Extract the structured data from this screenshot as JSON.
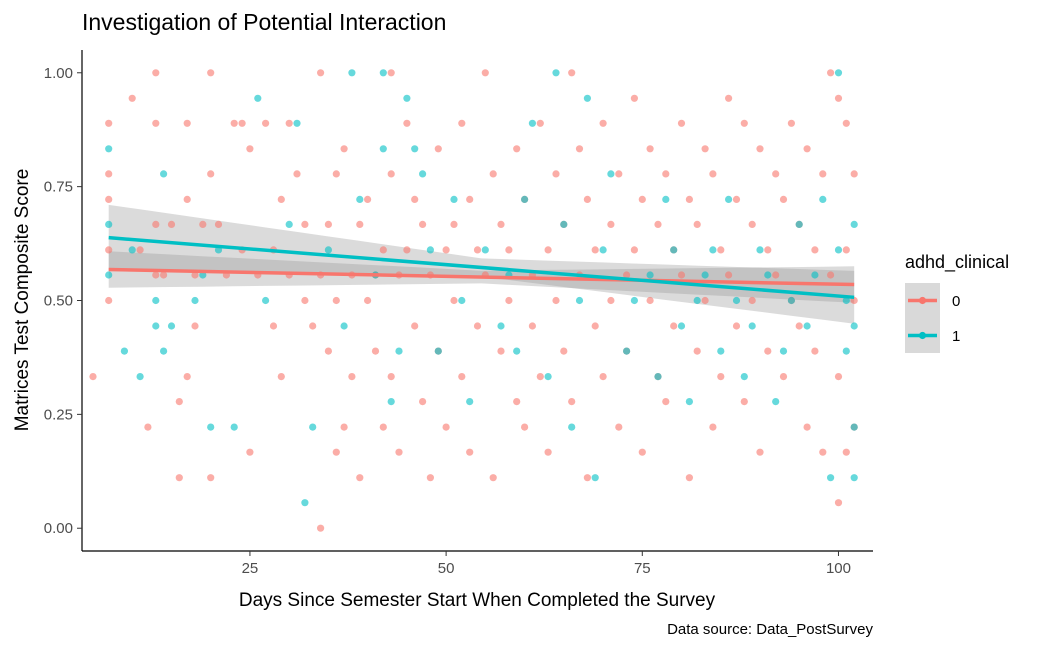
{
  "chart_data": {
    "type": "scatter",
    "title": "Investigation of Potential Interaction",
    "xlabel": "Days Since Semester Start When Completed the Survey",
    "ylabel": "Matrices Test Composite Score",
    "caption": "Data source: Data_PostSurvey",
    "xlim": [
      3.6,
      104.4
    ],
    "ylim": [
      -0.05,
      1.05
    ],
    "x_ticks": [
      25,
      50,
      75,
      100
    ],
    "y_ticks": [
      0.0,
      0.25,
      0.5,
      0.75,
      1.0
    ],
    "x_tick_labels": [
      "25",
      "50",
      "75",
      "100"
    ],
    "y_tick_labels": [
      "0.00",
      "0.25",
      "0.50",
      "0.75",
      "1.00"
    ],
    "grid": false,
    "legend": {
      "title": "adhd_clinical",
      "position": "right",
      "entries": [
        {
          "label": "0",
          "color": "#F8766D"
        },
        {
          "label": "1",
          "color": "#00BFC4"
        }
      ]
    },
    "series": [
      {
        "name": "0",
        "color": "#F8766D",
        "points": [
          [
            5,
            0.333
          ],
          [
            7,
            0.889
          ],
          [
            7,
            0.778
          ],
          [
            7,
            0.722
          ],
          [
            7,
            0.611
          ],
          [
            7,
            0.5
          ],
          [
            10,
            0.944
          ],
          [
            11,
            0.611
          ],
          [
            12,
            0.222
          ],
          [
            13,
            0.889
          ],
          [
            13,
            0.667
          ],
          [
            13,
            0.556
          ],
          [
            13,
            1.0
          ],
          [
            14,
            0.556
          ],
          [
            15,
            0.667
          ],
          [
            16,
            0.278
          ],
          [
            16,
            0.111
          ],
          [
            17,
            0.889
          ],
          [
            17,
            0.722
          ],
          [
            17,
            0.333
          ],
          [
            18,
            0.556
          ],
          [
            18,
            0.444
          ],
          [
            19,
            0.667
          ],
          [
            20,
            1.0
          ],
          [
            20,
            0.778
          ],
          [
            20,
            0.111
          ],
          [
            21,
            0.667
          ],
          [
            22,
            0.556
          ],
          [
            23,
            0.889
          ],
          [
            24,
            0.889
          ],
          [
            24,
            0.611
          ],
          [
            25,
            0.833
          ],
          [
            25,
            0.167
          ],
          [
            26,
            0.556
          ],
          [
            27,
            0.889
          ],
          [
            28,
            0.611
          ],
          [
            28,
            0.444
          ],
          [
            29,
            0.722
          ],
          [
            29,
            0.333
          ],
          [
            30,
            0.889
          ],
          [
            30,
            0.556
          ],
          [
            31,
            0.778
          ],
          [
            32,
            0.667
          ],
          [
            32,
            0.5
          ],
          [
            33,
            0.444
          ],
          [
            34,
            1.0
          ],
          [
            34,
            0.556
          ],
          [
            34,
            0.0
          ],
          [
            35,
            0.667
          ],
          [
            35,
            0.389
          ],
          [
            36,
            0.778
          ],
          [
            36,
            0.5
          ],
          [
            36,
            0.167
          ],
          [
            37,
            0.833
          ],
          [
            37,
            0.222
          ],
          [
            38,
            0.556
          ],
          [
            38,
            0.333
          ],
          [
            39,
            0.667
          ],
          [
            39,
            0.111
          ],
          [
            40,
            0.722
          ],
          [
            40,
            0.5
          ],
          [
            41,
            0.556
          ],
          [
            41,
            0.389
          ],
          [
            42,
            0.611
          ],
          [
            42,
            0.222
          ],
          [
            43,
            1.0
          ],
          [
            43,
            0.778
          ],
          [
            43,
            0.333
          ],
          [
            44,
            0.556
          ],
          [
            44,
            0.167
          ],
          [
            45,
            0.889
          ],
          [
            45,
            0.611
          ],
          [
            46,
            0.722
          ],
          [
            46,
            0.444
          ],
          [
            47,
            0.667
          ],
          [
            47,
            0.278
          ],
          [
            48,
            0.556
          ],
          [
            48,
            0.111
          ],
          [
            49,
            0.833
          ],
          [
            49,
            0.389
          ],
          [
            50,
            0.611
          ],
          [
            50,
            0.222
          ],
          [
            51,
            0.5
          ],
          [
            51,
            0.667
          ],
          [
            52,
            0.889
          ],
          [
            52,
            0.333
          ],
          [
            53,
            0.722
          ],
          [
            53,
            0.167
          ],
          [
            54,
            0.611
          ],
          [
            54,
            0.444
          ],
          [
            55,
            1.0
          ],
          [
            55,
            0.556
          ],
          [
            56,
            0.778
          ],
          [
            56,
            0.111
          ],
          [
            57,
            0.667
          ],
          [
            57,
            0.389
          ],
          [
            58,
            0.611
          ],
          [
            58,
            0.5
          ],
          [
            59,
            0.833
          ],
          [
            59,
            0.278
          ],
          [
            60,
            0.722
          ],
          [
            60,
            0.222
          ],
          [
            61,
            0.556
          ],
          [
            61,
            0.444
          ],
          [
            62,
            0.889
          ],
          [
            62,
            0.333
          ],
          [
            63,
            0.611
          ],
          [
            63,
            0.167
          ],
          [
            64,
            0.778
          ],
          [
            64,
            0.5
          ],
          [
            65,
            0.667
          ],
          [
            65,
            0.389
          ],
          [
            66,
            1.0
          ],
          [
            66,
            0.278
          ],
          [
            67,
            0.833
          ],
          [
            67,
            0.556
          ],
          [
            68,
            0.722
          ],
          [
            68,
            0.111
          ],
          [
            69,
            0.611
          ],
          [
            69,
            0.444
          ],
          [
            70,
            0.889
          ],
          [
            70,
            0.333
          ],
          [
            71,
            0.667
          ],
          [
            71,
            0.5
          ],
          [
            72,
            0.778
          ],
          [
            72,
            0.222
          ],
          [
            73,
            0.556
          ],
          [
            73,
            0.389
          ],
          [
            74,
            0.944
          ],
          [
            74,
            0.611
          ],
          [
            75,
            0.722
          ],
          [
            75,
            0.167
          ],
          [
            76,
            0.833
          ],
          [
            76,
            0.5
          ],
          [
            77,
            0.667
          ],
          [
            77,
            0.333
          ],
          [
            78,
            0.778
          ],
          [
            78,
            0.278
          ],
          [
            79,
            0.611
          ],
          [
            79,
            0.444
          ],
          [
            80,
            0.889
          ],
          [
            80,
            0.556
          ],
          [
            81,
            0.722
          ],
          [
            81,
            0.111
          ],
          [
            82,
            0.667
          ],
          [
            82,
            0.389
          ],
          [
            83,
            0.833
          ],
          [
            83,
            0.5
          ],
          [
            84,
            0.778
          ],
          [
            84,
            0.222
          ],
          [
            85,
            0.611
          ],
          [
            85,
            0.333
          ],
          [
            86,
            0.944
          ],
          [
            86,
            0.556
          ],
          [
            87,
            0.722
          ],
          [
            87,
            0.444
          ],
          [
            88,
            0.889
          ],
          [
            88,
            0.278
          ],
          [
            89,
            0.667
          ],
          [
            89,
            0.5
          ],
          [
            90,
            0.833
          ],
          [
            90,
            0.167
          ],
          [
            91,
            0.611
          ],
          [
            91,
            0.389
          ],
          [
            92,
            0.778
          ],
          [
            92,
            0.556
          ],
          [
            93,
            0.722
          ],
          [
            93,
            0.333
          ],
          [
            94,
            0.889
          ],
          [
            94,
            0.5
          ],
          [
            95,
            0.667
          ],
          [
            95,
            0.444
          ],
          [
            96,
            0.833
          ],
          [
            96,
            0.222
          ],
          [
            97,
            0.611
          ],
          [
            97,
            0.389
          ],
          [
            98,
            0.778
          ],
          [
            98,
            0.167
          ],
          [
            99,
            1.0
          ],
          [
            99,
            0.556
          ],
          [
            100,
            0.944
          ],
          [
            100,
            0.333
          ],
          [
            100,
            0.056
          ],
          [
            101,
            0.889
          ],
          [
            101,
            0.611
          ],
          [
            101,
            0.167
          ],
          [
            102,
            0.778
          ],
          [
            102,
            0.5
          ],
          [
            102,
            0.222
          ]
        ],
        "trend": [
          [
            7,
            0.568
          ],
          [
            102,
            0.535
          ]
        ]
      },
      {
        "name": "1",
        "color": "#00BFC4",
        "points": [
          [
            7,
            0.833
          ],
          [
            7,
            0.667
          ],
          [
            7,
            0.556
          ],
          [
            9,
            0.389
          ],
          [
            10,
            0.611
          ],
          [
            11,
            0.333
          ],
          [
            13,
            0.5
          ],
          [
            13,
            0.444
          ],
          [
            14,
            0.389
          ],
          [
            14,
            0.778
          ],
          [
            15,
            0.444
          ],
          [
            18,
            0.5
          ],
          [
            19,
            0.556
          ],
          [
            20,
            0.222
          ],
          [
            21,
            0.611
          ],
          [
            23,
            0.222
          ],
          [
            26,
            0.944
          ],
          [
            27,
            0.5
          ],
          [
            30,
            0.667
          ],
          [
            31,
            0.889
          ],
          [
            32,
            0.056
          ],
          [
            33,
            0.222
          ],
          [
            35,
            0.611
          ],
          [
            37,
            0.444
          ],
          [
            38,
            1.0
          ],
          [
            39,
            0.722
          ],
          [
            41,
            0.556
          ],
          [
            42,
            1.0
          ],
          [
            42,
            0.833
          ],
          [
            43,
            0.278
          ],
          [
            44,
            0.389
          ],
          [
            45,
            0.944
          ],
          [
            46,
            0.833
          ],
          [
            47,
            0.778
          ],
          [
            48,
            0.611
          ],
          [
            49,
            0.389
          ],
          [
            51,
            0.722
          ],
          [
            52,
            0.5
          ],
          [
            53,
            0.278
          ],
          [
            55,
            0.611
          ],
          [
            57,
            0.444
          ],
          [
            58,
            0.556
          ],
          [
            59,
            0.389
          ],
          [
            60,
            0.722
          ],
          [
            61,
            0.889
          ],
          [
            63,
            0.333
          ],
          [
            64,
            1.0
          ],
          [
            65,
            0.667
          ],
          [
            66,
            0.222
          ],
          [
            67,
            0.5
          ],
          [
            68,
            0.944
          ],
          [
            69,
            0.111
          ],
          [
            70,
            0.611
          ],
          [
            71,
            0.778
          ],
          [
            73,
            0.389
          ],
          [
            74,
            0.5
          ],
          [
            76,
            0.556
          ],
          [
            77,
            0.333
          ],
          [
            78,
            0.722
          ],
          [
            79,
            0.611
          ],
          [
            80,
            0.444
          ],
          [
            81,
            0.278
          ],
          [
            82,
            0.5
          ],
          [
            83,
            0.556
          ],
          [
            84,
            0.611
          ],
          [
            85,
            0.389
          ],
          [
            86,
            0.722
          ],
          [
            87,
            0.5
          ],
          [
            88,
            0.333
          ],
          [
            89,
            0.444
          ],
          [
            90,
            0.611
          ],
          [
            91,
            0.556
          ],
          [
            92,
            0.278
          ],
          [
            93,
            0.389
          ],
          [
            94,
            0.5
          ],
          [
            95,
            0.667
          ],
          [
            96,
            0.444
          ],
          [
            97,
            0.556
          ],
          [
            98,
            0.722
          ],
          [
            99,
            0.111
          ],
          [
            100,
            1.0
          ],
          [
            100,
            0.611
          ],
          [
            101,
            0.5
          ],
          [
            101,
            0.389
          ],
          [
            102,
            0.667
          ],
          [
            102,
            0.444
          ],
          [
            102,
            0.222
          ],
          [
            102,
            0.111
          ]
        ],
        "trend": [
          [
            7,
            0.638
          ],
          [
            102,
            0.507
          ]
        ]
      }
    ]
  }
}
